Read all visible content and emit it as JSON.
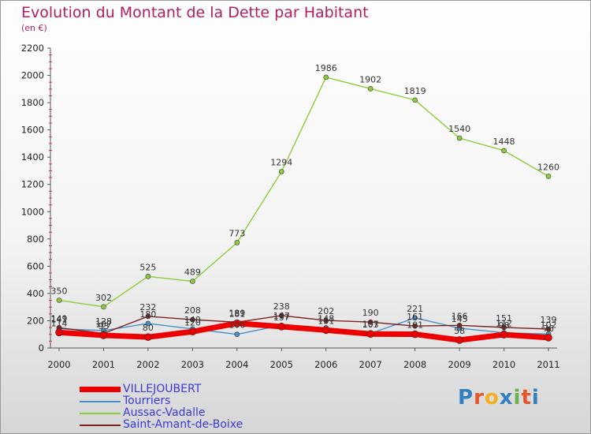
{
  "title": "Evolution du Montant de la Dette par Habitant",
  "subtitle": "(en €)",
  "logo_text": "Proxiti",
  "logo_colors": [
    "#2f7fc1",
    "#e4572e",
    "#f2b01e",
    "#2f7fc1",
    "#6ab04c",
    "#e4572e",
    "#2f7fc1"
  ],
  "chart_data": {
    "type": "line",
    "title": "Evolution du Montant de la Dette par Habitant",
    "ylabel": "(en €)",
    "xlabel": "",
    "x": [
      "2000",
      "2001",
      "2002",
      "2003",
      "2004",
      "2005",
      "2006",
      "2007",
      "2008",
      "2009",
      "2010",
      "2011"
    ],
    "ylim": [
      0,
      2200
    ],
    "yticks": [
      "0",
      "200",
      "400",
      "600",
      "800",
      "1000",
      "1200",
      "1400",
      "1600",
      "1800",
      "2000",
      "2200"
    ],
    "grid": false,
    "legend_position": "bottom-left",
    "series": [
      {
        "name": "VILLEJOUBERT",
        "color": "#ee0000",
        "values": [
          114,
          93,
          80,
          120,
          181,
          157,
          131,
          103,
          101,
          58,
          98,
          76
        ],
        "labels": [
          "114",
          "93",
          "80",
          "120",
          "181",
          "157",
          "131",
          "103",
          "101",
          "58",
          "98",
          "76"
        ]
      },
      {
        "name": "Tourriers",
        "color": "#4a90c8",
        "values": [
          141,
          128,
          180,
          140,
          100,
          167,
          148,
          107,
          221,
          145,
          112,
          102
        ],
        "labels": [
          "141",
          "128",
          "180",
          "140",
          "100",
          "167",
          "148",
          "107",
          "221",
          "145",
          "112",
          "102"
        ]
      },
      {
        "name": "Aussac-Vadalle",
        "color": "#8ccd3c",
        "values": [
          350,
          302,
          525,
          489,
          773,
          1294,
          1986,
          1902,
          1819,
          1540,
          1448,
          1260
        ],
        "labels": [
          "350",
          "302",
          "525",
          "489",
          "773",
          "1294",
          "1986",
          "1902",
          "1819",
          "1540",
          "1448",
          "1260"
        ]
      },
      {
        "name": "Saint-Amant-de-Boixe",
        "color": "#7a2424",
        "values": [
          149,
          107,
          232,
          208,
          189,
          238,
          202,
          190,
          161,
          166,
          151,
          139
        ],
        "labels": [
          "149",
          "107",
          "232",
          "208",
          "189",
          "238",
          "202",
          "190",
          "161",
          "166",
          "151",
          "139"
        ]
      }
    ]
  }
}
